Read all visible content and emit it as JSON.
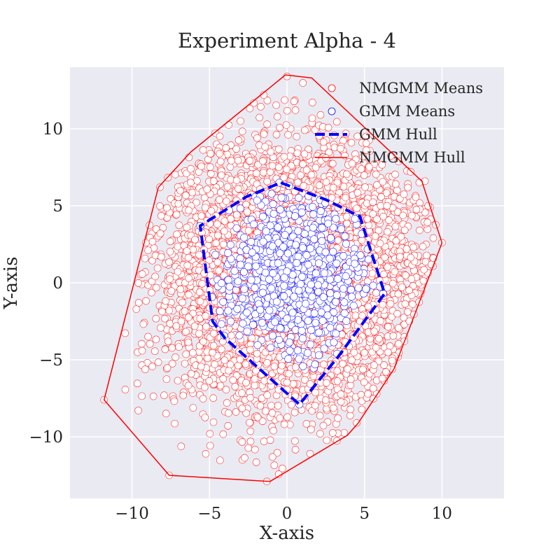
{
  "chart_data": {
    "type": "scatter",
    "title": "Experiment Alpha - 4",
    "xlabel": "X-axis",
    "ylabel": "Y-axis",
    "xlim": [
      -14,
      14
    ],
    "ylim": [
      -14,
      14
    ],
    "xticks": [
      -10,
      -5,
      0,
      5,
      10
    ],
    "yticks": [
      -10,
      -5,
      0,
      5,
      10
    ],
    "xtick_labels": [
      "−10",
      "−5",
      "0",
      "5",
      "10"
    ],
    "ytick_labels": [
      "−10",
      "−5",
      "0",
      "5",
      "10"
    ],
    "grid": true,
    "background": "#eaeaf2",
    "legend_position": "top-right",
    "legend": [
      {
        "label": "NMGMM Means",
        "kind": "marker",
        "color": "#ff0000"
      },
      {
        "label": "GMM Means",
        "kind": "marker",
        "color": "#0000ff"
      },
      {
        "label": "GMM Hull",
        "kind": "dashed-line",
        "color": "#0000ff"
      },
      {
        "label": "NMGMM Hull",
        "kind": "line",
        "color": "#ff0000"
      }
    ],
    "series": [
      {
        "name": "NMGMM Means",
        "marker": "circle-open",
        "edge_color": "#ff0000",
        "face_color": "#ffffff",
        "approx_count": 5000,
        "center": [
          0.5,
          0.5
        ],
        "spread": [
          4.2,
          4.2
        ],
        "sample_points": [
          [
            -11.8,
            -7.6
          ],
          [
            -7.6,
            -12.5
          ],
          [
            -1.3,
            -12.9
          ],
          [
            4.5,
            -9.1
          ],
          [
            6.8,
            -5.6
          ],
          [
            10.0,
            2.6
          ],
          [
            8.9,
            6.6
          ],
          [
            0.0,
            13.4
          ],
          [
            -8.2,
            6.2
          ],
          [
            -3.0,
            10.5
          ],
          [
            3.5,
            -7.5
          ],
          [
            -6.0,
            3.0
          ]
        ]
      },
      {
        "name": "GMM Means",
        "marker": "circle-open",
        "edge_color": "#0000ff",
        "face_color": "#ffffff",
        "approx_count": 900,
        "center": [
          0.3,
          0.5
        ],
        "spread": [
          2.2,
          2.2
        ],
        "sample_points": [
          [
            -5.6,
            3.7
          ],
          [
            -0.5,
            6.5
          ],
          [
            4.6,
            4.2
          ],
          [
            6.2,
            -0.7
          ],
          [
            0.8,
            -7.9
          ],
          [
            -4.8,
            -2.6
          ],
          [
            1.5,
            1.0
          ],
          [
            -1.5,
            -1.2
          ]
        ]
      }
    ],
    "hulls": [
      {
        "name": "NMGMM Hull",
        "style": "solid",
        "color": "#ff0000",
        "points": [
          [
            -0.1,
            13.5
          ],
          [
            1.6,
            13.3
          ],
          [
            8.7,
            6.6
          ],
          [
            10.0,
            2.6
          ],
          [
            6.9,
            -5.6
          ],
          [
            4.6,
            -9.1
          ],
          [
            3.9,
            -9.9
          ],
          [
            -1.1,
            -12.9
          ],
          [
            -7.6,
            -12.5
          ],
          [
            -11.8,
            -7.6
          ],
          [
            -8.3,
            6.2
          ],
          [
            -6.2,
            8.5
          ]
        ]
      },
      {
        "name": "GMM Hull",
        "style": "dashed",
        "color": "#0000ff",
        "points": [
          [
            -0.4,
            6.5
          ],
          [
            2.5,
            5.4
          ],
          [
            4.7,
            4.3
          ],
          [
            6.3,
            -0.7
          ],
          [
            3.3,
            -4.8
          ],
          [
            0.8,
            -7.9
          ],
          [
            -4.0,
            -3.6
          ],
          [
            -4.8,
            -2.5
          ],
          [
            -5.6,
            3.7
          ],
          [
            -2.6,
            5.6
          ]
        ]
      }
    ]
  }
}
